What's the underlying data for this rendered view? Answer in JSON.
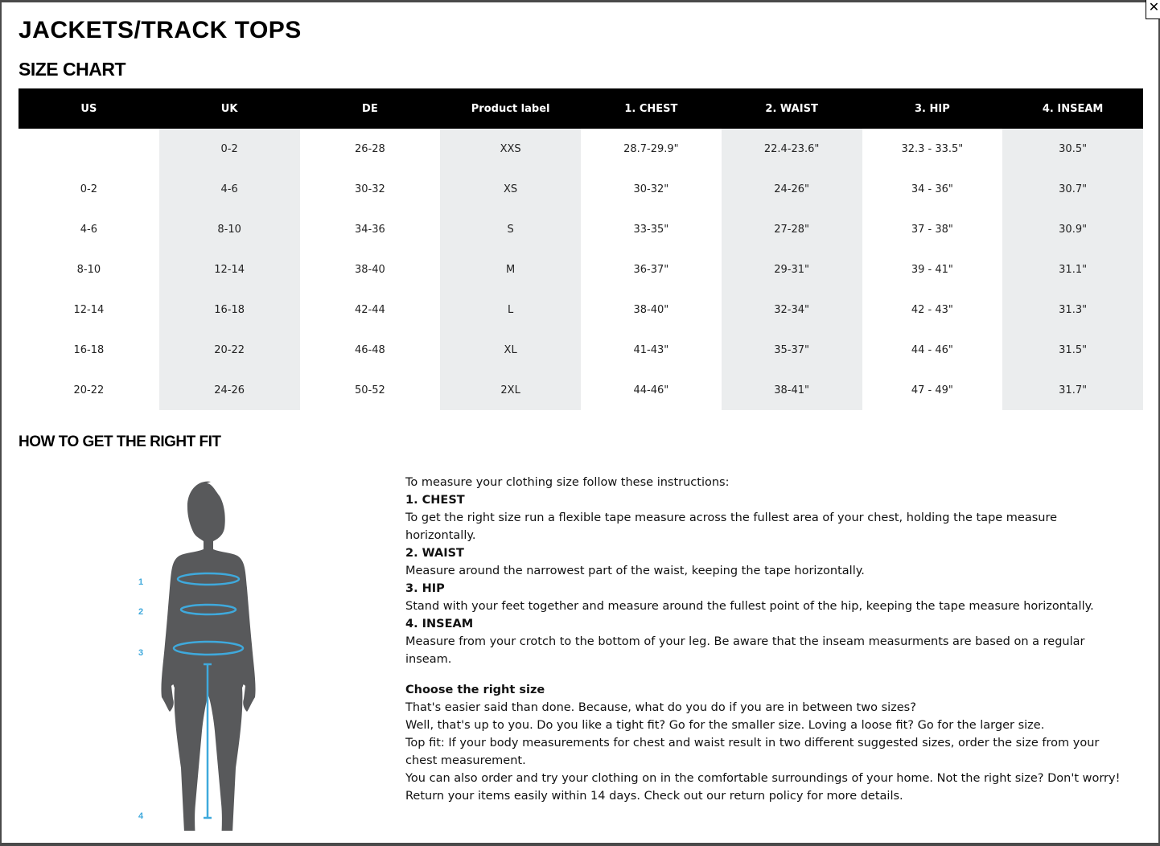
{
  "close_icon": "close-icon",
  "title": "JACKETS/TRACK TOPS",
  "size_chart_heading": "SIZE CHART",
  "table": {
    "headers": [
      "US",
      "UK",
      "DE",
      "Product label",
      "1. CHEST",
      "2. WAIST",
      "3. HIP",
      "4. INSEAM"
    ],
    "rows": [
      [
        "",
        "0-2",
        "26-28",
        "XXS",
        "28.7-29.9\"",
        "22.4-23.6\"",
        "32.3 - 33.5\"",
        "30.5\""
      ],
      [
        "0-2",
        "4-6",
        "30-32",
        "XS",
        "30-32\"",
        "24-26\"",
        "34 - 36\"",
        "30.7\""
      ],
      [
        "4-6",
        "8-10",
        "34-36",
        "S",
        "33-35\"",
        "27-28\"",
        "37 - 38\"",
        "30.9\""
      ],
      [
        "8-10",
        "12-14",
        "38-40",
        "M",
        "36-37\"",
        "29-31\"",
        "39 - 41\"",
        "31.1\""
      ],
      [
        "12-14",
        "16-18",
        "42-44",
        "L",
        "38-40\"",
        "32-34\"",
        "42 - 43\"",
        "31.3\""
      ],
      [
        "16-18",
        "20-22",
        "46-48",
        "XL",
        "41-43\"",
        "35-37\"",
        "44 - 46\"",
        "31.5\""
      ],
      [
        "20-22",
        "24-26",
        "50-52",
        "2XL",
        "44-46\"",
        "38-41\"",
        "47 - 49\"",
        "31.7\""
      ]
    ],
    "shade_color": "#ebedee"
  },
  "fit_heading": "HOW TO GET THE RIGHT FIT",
  "figure": {
    "labels": [
      "1",
      "2",
      "3",
      "4"
    ],
    "accent": "#3fa9dc",
    "silhouette": "#58595b"
  },
  "instructions": {
    "intro": "To measure your clothing size follow these instructions:",
    "chest_title": "1. CHEST",
    "chest": "To get the right size run a flexible tape measure across the fullest area of your chest, holding the tape measure horizontally.",
    "waist_title": "2. WAIST",
    "waist": "Measure around the narrowest part of the waist, keeping the tape horizontally.",
    "hip_title": "3. HIP",
    "hip": "Stand with your feet together and measure around the fullest point of the hip, keeping the tape measure horizontally.",
    "inseam_title": "4. INSEAM",
    "inseam": "Measure from your crotch to the bottom of your leg. Be aware that the inseam measurments are based on a regular inseam.",
    "choose_title": "Choose the right size",
    "choose_1": "That's easier said than done. Because, what do you do if you are in between two sizes?",
    "choose_2": "Well, that's up to you. Do you like a tight fit? Go for the smaller size. Loving a loose fit? Go for the larger size.",
    "choose_3": "Top fit: If your body measurements for chest and waist result in two different suggested sizes, order the size from your chest measurement.",
    "choose_4": "You can also order and try your clothing on in the comfortable surroundings of your home. Not the right size? Don't worry!",
    "choose_5": "Return your items easily within 14 days. Check out our return policy for more details."
  }
}
